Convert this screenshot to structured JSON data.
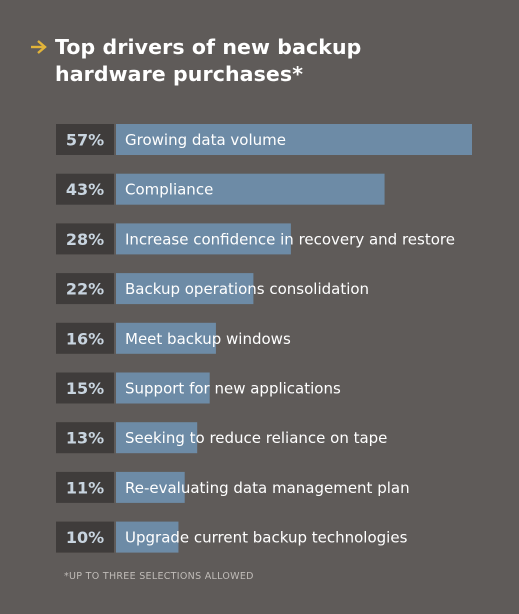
{
  "chart_data": {
    "type": "bar",
    "orientation": "horizontal",
    "title": "Top drivers of new backup hardware purchases*",
    "categories": [
      "Growing data volume",
      "Compliance",
      "Increase confidence in recovery and restore",
      "Backup operations consolidation",
      "Meet backup windows",
      "Support for new applications",
      "Seeking to reduce reliance on tape",
      "Re-evaluating data management plan",
      "Upgrade current backup technologies"
    ],
    "values": [
      57,
      43,
      28,
      22,
      16,
      15,
      13,
      11,
      10
    ],
    "value_labels": [
      "57%",
      "43%",
      "28%",
      "22%",
      "16%",
      "15%",
      "13%",
      "11%",
      "10%"
    ],
    "xlim": [
      0,
      57
    ],
    "footnote": "*UP TO THREE SELECTIONS ALLOWED",
    "colors": {
      "background": "#5f5b59",
      "bar": "#6d8ba6",
      "value_box": "#3f3c3b",
      "accent_arrow": "#e2b43a",
      "text": "#ffffff",
      "value_text": "#c8d4df"
    }
  }
}
